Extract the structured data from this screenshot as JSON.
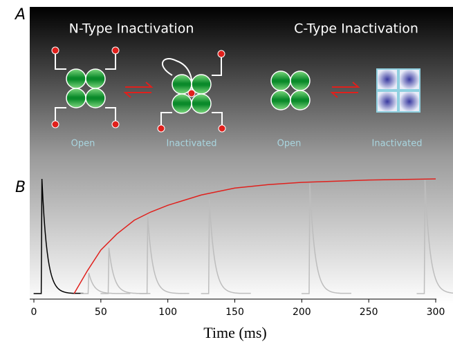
{
  "panel_a": {
    "label": "A",
    "titles": [
      "N-Type Inactivation",
      "C-Type Inactivation"
    ],
    "states": [
      "Open",
      "Inactivated",
      "Open",
      "Inactivated"
    ]
  },
  "chart_data": {
    "type": "line",
    "label": "B",
    "xlabel": "Time (ms)",
    "xlim": [
      0,
      300
    ],
    "ylim": [
      0,
      1
    ],
    "xticks": [
      0,
      50,
      100,
      150,
      200,
      250,
      300
    ],
    "recovery": {
      "color": "#e0201c",
      "x": [
        30,
        40,
        50,
        62,
        75,
        87,
        100,
        125,
        150,
        175,
        200,
        250,
        300
      ],
      "values": [
        0,
        0.2,
        0.38,
        0.52,
        0.64,
        0.71,
        0.77,
        0.86,
        0.92,
        0.95,
        0.97,
        0.99,
        1.0
      ]
    },
    "series": [
      {
        "color": "#000000",
        "x": [
          6
        ],
        "values": [
          1.0
        ]
      },
      {
        "color": "#bdbdbd",
        "x": [
          41,
          56,
          85,
          131,
          206,
          292
        ],
        "values": [
          0.18,
          0.4,
          0.67,
          0.82,
          0.96,
          0.99
        ]
      }
    ]
  }
}
